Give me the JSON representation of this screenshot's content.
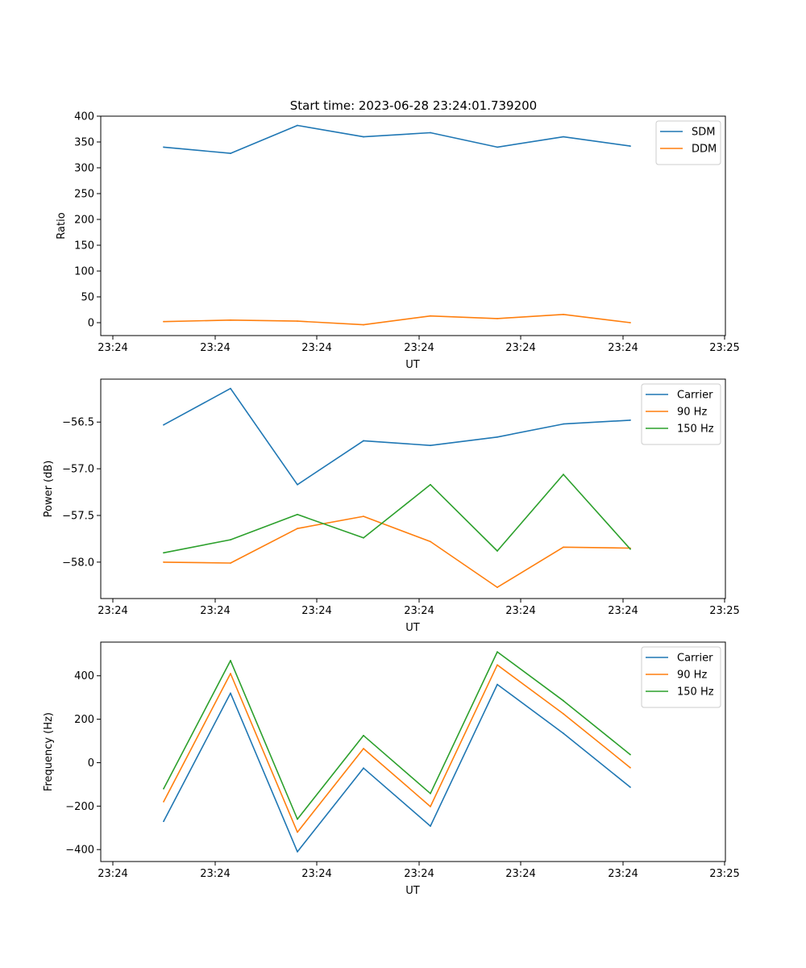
{
  "figure": {
    "title": "Start time: 2023-06-28 23:24:01.739200"
  },
  "chart_data": [
    {
      "type": "line",
      "title": "Start time: 2023-06-28 23:24:01.739200",
      "xlabel": "UT",
      "ylabel": "Ratio",
      "x_tick_labels": [
        "23:24",
        "23:24",
        "23:24",
        "23:24",
        "23:24",
        "23:24",
        "23:25"
      ],
      "yticks": [
        0,
        50,
        100,
        150,
        200,
        250,
        300,
        350,
        400
      ],
      "ytick_labels": [
        "0",
        "50",
        "100",
        "150",
        "200",
        "250",
        "300",
        "350",
        "400"
      ],
      "ylim": [
        -25,
        400
      ],
      "legend_position": "top-right",
      "series": [
        {
          "name": "SDM",
          "color": "#1f77b4",
          "values": [
            340,
            328,
            382,
            360,
            368,
            340,
            360,
            342
          ]
        },
        {
          "name": "DDM",
          "color": "#ff7f0e",
          "values": [
            2,
            5,
            3,
            -4,
            13,
            8,
            16,
            0
          ]
        }
      ]
    },
    {
      "type": "line",
      "title": "",
      "xlabel": "UT",
      "ylabel": "Power (dB)",
      "x_tick_labels": [
        "23:24",
        "23:24",
        "23:24",
        "23:24",
        "23:24",
        "23:24",
        "23:25"
      ],
      "yticks": [
        -56.5,
        -57.0,
        -57.5,
        -58.0
      ],
      "ytick_labels": [
        "−56.5",
        "−57.0",
        "−57.5",
        "−58.0"
      ],
      "ylim": [
        -58.39,
        -56.04
      ],
      "legend_position": "top-right",
      "series": [
        {
          "name": "Carrier",
          "color": "#1f77b4",
          "values": [
            -56.53,
            -56.14,
            -57.17,
            -56.7,
            -56.75,
            -56.66,
            -56.52,
            -56.48
          ]
        },
        {
          "name": "90 Hz",
          "color": "#ff7f0e",
          "values": [
            -58.0,
            -58.01,
            -57.64,
            -57.51,
            -57.78,
            -58.27,
            -57.84,
            -57.85
          ]
        },
        {
          "name": "150 Hz",
          "color": "#2ca02c",
          "values": [
            -57.9,
            -57.76,
            -57.49,
            -57.74,
            -57.17,
            -57.88,
            -57.06,
            -57.86
          ]
        }
      ]
    },
    {
      "type": "line",
      "title": "",
      "xlabel": "UT",
      "ylabel": "Frequency (Hz)",
      "x_tick_labels": [
        "23:24",
        "23:24",
        "23:24",
        "23:24",
        "23:24",
        "23:24",
        "23:25"
      ],
      "yticks": [
        400,
        200,
        0,
        -200,
        -400
      ],
      "ytick_labels": [
        "400",
        "200",
        "0",
        "−200",
        "−400"
      ],
      "ylim": [
        -455,
        555
      ],
      "legend_position": "top-right",
      "series": [
        {
          "name": "Carrier",
          "color": "#1f77b4",
          "values": [
            -270,
            320,
            -410,
            -25,
            -292,
            360,
            135,
            -113
          ]
        },
        {
          "name": "90 Hz",
          "color": "#ff7f0e",
          "values": [
            -180,
            410,
            -320,
            65,
            -202,
            450,
            225,
            -23
          ]
        },
        {
          "name": "150 Hz",
          "color": "#2ca02c",
          "values": [
            -120,
            470,
            -260,
            125,
            -142,
            510,
            285,
            37
          ]
        }
      ]
    }
  ]
}
